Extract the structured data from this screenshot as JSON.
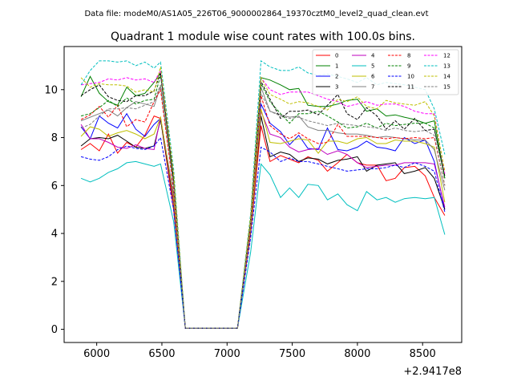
{
  "suptitle": "Data file: modeM0/AS1A05_226T06_9000002864_19370cztM0_level2_quad_clean.evt",
  "chart_data": {
    "type": "line",
    "title": "Quadrant 1 module wise count rates with 100.0s bins.",
    "xlabel": "",
    "ylabel": "",
    "x_offset_label": "+2.9417e8",
    "xlim": [
      5750,
      8800
    ],
    "ylim": [
      -0.55,
      11.8
    ],
    "xticks": [
      6000,
      6500,
      7000,
      7500,
      8000,
      8500
    ],
    "xtick_labels": [
      "6000",
      "6500",
      "7000",
      "7500",
      "8000",
      "8500"
    ],
    "yticks": [
      0,
      2,
      4,
      6,
      8,
      10
    ],
    "ytick_labels": [
      "0",
      "2",
      "4",
      "6",
      "8",
      "10"
    ],
    "grid": false,
    "legend_position": "top-right",
    "x": [
      5880,
      5950,
      6020,
      6090,
      6160,
      6230,
      6300,
      6370,
      6440,
      6490,
      6590,
      6680,
      7080,
      7180,
      7260,
      7330,
      7410,
      7480,
      7550,
      7620,
      7700,
      7770,
      7850,
      7920,
      8000,
      8070,
      8150,
      8220,
      8290,
      8360,
      8440,
      8520,
      8590,
      8670
    ],
    "series": [
      {
        "name": "0",
        "color": "#ff0000",
        "dashed": false,
        "values": [
          7.5,
          7.75,
          7.45,
          8.15,
          7.35,
          7.8,
          7.6,
          8.1,
          8.9,
          8.8,
          5.0,
          0.05,
          0.05,
          4.0,
          8.5,
          7.0,
          7.25,
          7.1,
          6.95,
          7.2,
          7.05,
          6.6,
          6.95,
          7.3,
          6.95,
          6.85,
          6.85,
          6.2,
          6.3,
          6.75,
          6.8,
          6.4,
          5.5,
          4.75
        ]
      },
      {
        "name": "1",
        "color": "#008000",
        "dashed": false,
        "values": [
          9.7,
          10.55,
          9.85,
          9.5,
          9.35,
          10.1,
          9.75,
          9.85,
          10.3,
          10.7,
          6.2,
          0.05,
          0.05,
          4.5,
          10.5,
          10.4,
          10.2,
          10.0,
          10.05,
          9.35,
          9.3,
          9.3,
          9.4,
          9.55,
          9.6,
          9.1,
          9.2,
          8.9,
          8.95,
          8.85,
          8.75,
          8.6,
          8.7,
          6.3
        ]
      },
      {
        "name": "2",
        "color": "#0000ff",
        "dashed": false,
        "values": [
          8.45,
          7.95,
          8.9,
          8.6,
          8.4,
          9.0,
          8.35,
          8.05,
          8.55,
          8.8,
          5.6,
          0.05,
          0.05,
          4.3,
          9.4,
          8.6,
          8.25,
          7.7,
          8.1,
          7.55,
          7.5,
          8.4,
          7.5,
          7.45,
          7.6,
          7.85,
          7.6,
          7.55,
          7.45,
          8.0,
          7.75,
          7.9,
          7.0,
          5.0
        ]
      },
      {
        "name": "3",
        "color": "#000000",
        "dashed": false,
        "values": [
          7.65,
          7.95,
          8.0,
          7.95,
          8.1,
          7.85,
          7.6,
          7.55,
          7.65,
          8.75,
          5.3,
          0.05,
          0.05,
          4.1,
          8.9,
          7.2,
          7.4,
          7.3,
          7.0,
          7.15,
          7.1,
          6.9,
          7.05,
          7.1,
          7.2,
          6.6,
          6.85,
          6.9,
          6.95,
          6.5,
          6.6,
          6.75,
          6.3,
          5.0
        ]
      },
      {
        "name": "4",
        "color": "#bf00bf",
        "dashed": false,
        "values": [
          8.55,
          7.95,
          7.95,
          7.8,
          7.6,
          7.55,
          7.7,
          7.55,
          7.5,
          8.85,
          5.4,
          0.05,
          0.05,
          4.15,
          9.1,
          8.15,
          8.0,
          7.6,
          7.4,
          7.5,
          7.55,
          7.3,
          7.45,
          7.3,
          6.95,
          6.75,
          6.8,
          6.85,
          6.85,
          6.95,
          6.95,
          6.95,
          6.9,
          5.1
        ]
      },
      {
        "name": "5",
        "color": "#00bfbf",
        "dashed": false,
        "values": [
          6.3,
          6.15,
          6.3,
          6.55,
          6.7,
          6.95,
          7.0,
          6.9,
          6.8,
          6.9,
          4.5,
          0.05,
          0.05,
          3.2,
          6.9,
          6.45,
          5.5,
          5.9,
          5.5,
          6.05,
          6.0,
          5.4,
          5.65,
          5.2,
          4.95,
          5.75,
          5.4,
          5.5,
          5.3,
          5.45,
          5.5,
          5.45,
          5.5,
          3.95
        ]
      },
      {
        "name": "6",
        "color": "#bfbf00",
        "dashed": false,
        "values": [
          8.05,
          8.45,
          8.35,
          8.05,
          8.2,
          8.3,
          8.15,
          7.95,
          8.15,
          8.85,
          5.5,
          0.05,
          0.05,
          4.2,
          9.2,
          7.8,
          7.75,
          7.85,
          7.95,
          7.9,
          7.35,
          7.85,
          7.85,
          7.75,
          7.95,
          8.0,
          7.75,
          7.75,
          7.9,
          7.85,
          7.85,
          7.75,
          7.6,
          5.3
        ]
      },
      {
        "name": "7",
        "color": "#808080",
        "dashed": false,
        "values": [
          8.7,
          8.85,
          9.0,
          9.15,
          8.9,
          9.25,
          9.5,
          9.4,
          9.3,
          10.15,
          6.0,
          0.05,
          0.05,
          4.4,
          10.1,
          9.1,
          8.95,
          8.85,
          8.9,
          8.45,
          8.3,
          8.3,
          8.2,
          8.15,
          8.15,
          8.1,
          8.0,
          8.05,
          8.0,
          7.95,
          7.9,
          7.9,
          7.5,
          5.8
        ]
      },
      {
        "name": "8",
        "color": "#ff0000",
        "dashed": true,
        "values": [
          8.75,
          8.95,
          9.3,
          8.85,
          9.35,
          8.45,
          8.75,
          8.65,
          9.5,
          10.0,
          5.8,
          0.05,
          0.05,
          4.3,
          9.75,
          8.5,
          8.15,
          7.95,
          8.2,
          7.95,
          7.75,
          7.8,
          8.55,
          8.05,
          8.05,
          8.05,
          8.0,
          7.95,
          8.0,
          7.95,
          8.0,
          7.95,
          8.0,
          6.0
        ]
      },
      {
        "name": "9",
        "color": "#008000",
        "dashed": true,
        "values": [
          8.9,
          9.0,
          9.25,
          9.55,
          9.3,
          9.65,
          9.4,
          9.55,
          9.6,
          10.6,
          6.2,
          0.05,
          0.05,
          4.5,
          10.25,
          9.5,
          9.0,
          8.6,
          9.0,
          9.0,
          9.1,
          8.9,
          8.65,
          8.4,
          8.45,
          8.6,
          8.4,
          8.6,
          8.5,
          8.55,
          8.6,
          8.6,
          8.4,
          6.3
        ]
      },
      {
        "name": "10",
        "color": "#0000ff",
        "dashed": true,
        "values": [
          7.2,
          7.1,
          7.05,
          7.2,
          7.5,
          7.65,
          7.55,
          7.5,
          7.65,
          8.0,
          5.0,
          0.05,
          0.05,
          3.8,
          7.6,
          7.4,
          7.0,
          7.15,
          7.0,
          7.0,
          6.9,
          6.8,
          6.7,
          6.6,
          6.65,
          6.7,
          6.7,
          6.75,
          6.85,
          6.75,
          6.95,
          6.8,
          6.6,
          4.9
        ]
      },
      {
        "name": "11",
        "color": "#000000",
        "dashed": true,
        "values": [
          9.75,
          10.0,
          10.2,
          9.7,
          9.55,
          9.5,
          9.75,
          9.75,
          9.95,
          10.7,
          6.3,
          0.05,
          0.05,
          4.55,
          10.35,
          9.6,
          8.8,
          9.1,
          9.1,
          9.15,
          8.95,
          9.35,
          9.8,
          9.0,
          8.75,
          9.25,
          8.9,
          8.35,
          8.7,
          8.35,
          8.8,
          8.3,
          8.35,
          6.4
        ]
      },
      {
        "name": "12",
        "color": "#ff00ff",
        "dashed": true,
        "values": [
          10.2,
          10.25,
          10.3,
          10.45,
          10.4,
          10.5,
          10.4,
          10.45,
          10.3,
          10.8,
          6.5,
          0.05,
          0.05,
          4.7,
          10.5,
          10.0,
          9.8,
          9.9,
          9.9,
          9.9,
          9.75,
          9.6,
          9.5,
          9.3,
          9.4,
          9.5,
          9.35,
          9.4,
          9.4,
          9.3,
          9.1,
          9.0,
          9.0,
          6.5
        ]
      },
      {
        "name": "13",
        "color": "#00bfbf",
        "dashed": true,
        "values": [
          10.2,
          10.8,
          11.2,
          11.2,
          11.15,
          11.2,
          11.0,
          11.15,
          10.9,
          11.15,
          6.7,
          0.05,
          0.05,
          4.8,
          11.2,
          10.95,
          10.8,
          10.8,
          10.95,
          10.7,
          10.6,
          10.65,
          10.55,
          10.45,
          10.3,
          10.5,
          10.2,
          10.3,
          10.25,
          10.2,
          10.1,
          10.0,
          9.2,
          7.3
        ]
      },
      {
        "name": "14",
        "color": "#bfbf00",
        "dashed": true,
        "values": [
          10.5,
          10.1,
          10.25,
          10.2,
          10.2,
          10.15,
          9.9,
          10.0,
          9.9,
          10.95,
          6.5,
          0.05,
          0.05,
          4.7,
          10.5,
          9.8,
          9.6,
          9.4,
          9.5,
          9.45,
          9.3,
          9.15,
          9.6,
          9.5,
          9.7,
          9.3,
          9.2,
          9.55,
          9.45,
          9.4,
          9.35,
          9.5,
          8.9,
          6.6
        ]
      },
      {
        "name": "15",
        "color": "#808080",
        "dashed": true,
        "values": [
          8.4,
          8.55,
          8.9,
          9.2,
          9.2,
          9.25,
          9.2,
          9.35,
          9.5,
          10.2,
          6.0,
          0.05,
          0.05,
          4.4,
          9.85,
          9.1,
          8.9,
          8.8,
          8.85,
          8.7,
          8.6,
          8.5,
          8.6,
          8.55,
          8.5,
          8.45,
          8.4,
          8.3,
          8.4,
          8.3,
          8.25,
          8.3,
          8.1,
          6.0
        ]
      }
    ]
  }
}
